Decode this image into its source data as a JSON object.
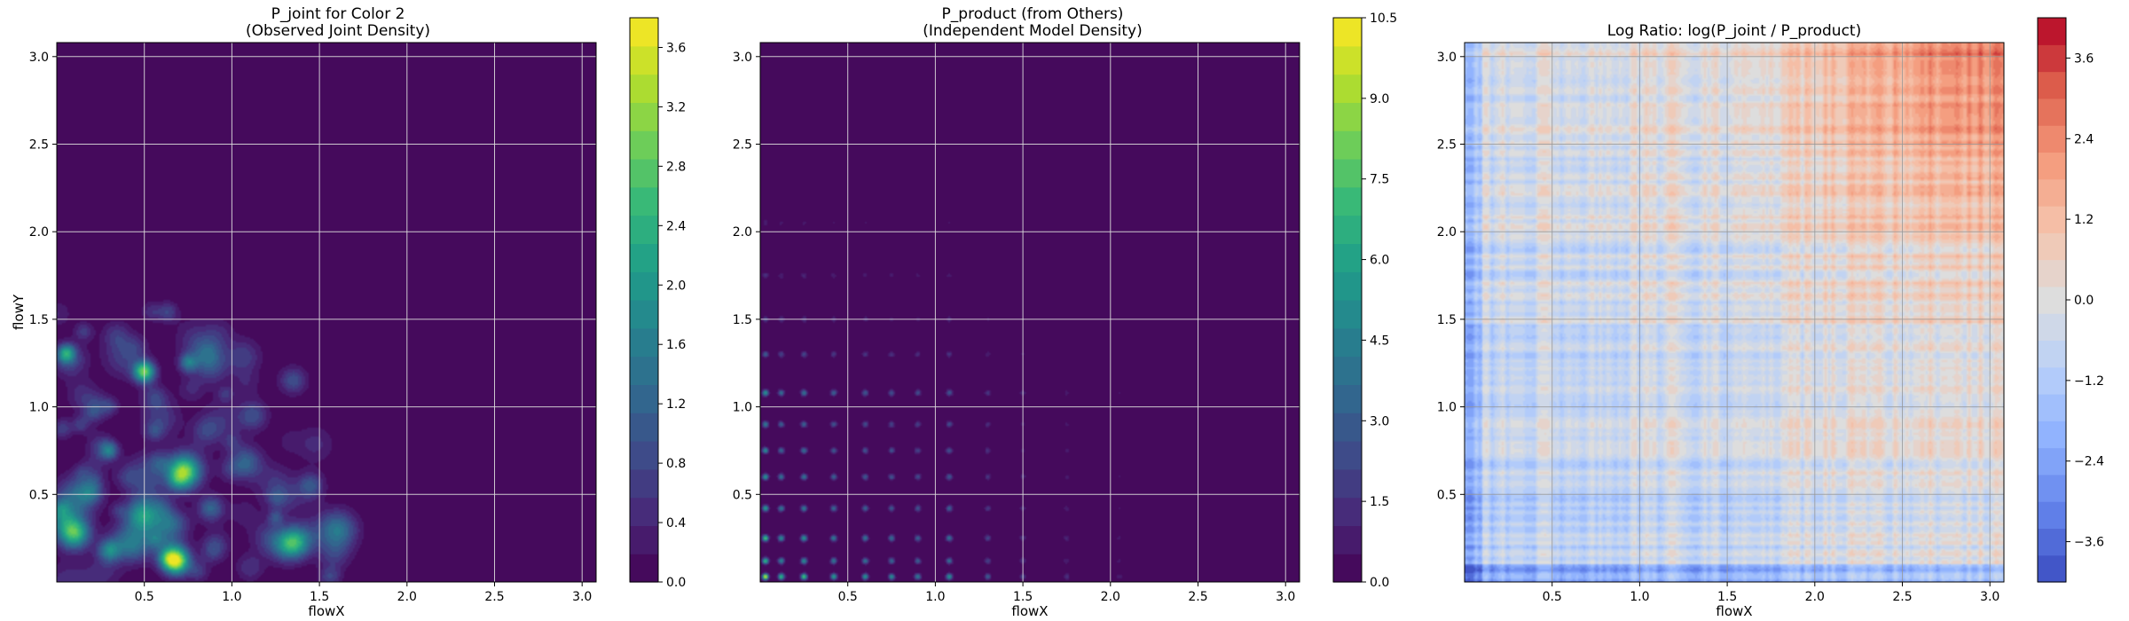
{
  "chart_data": [
    {
      "type": "heatmap",
      "title": "P_joint for Color 2\n(Observed Joint Density)",
      "xlabel": "flowX",
      "ylabel": "flowY",
      "xlim": [
        0.0,
        3.08
      ],
      "ylim": [
        0.0,
        3.08
      ],
      "xticks": [
        0.5,
        1.0,
        1.5,
        2.0,
        2.5,
        3.0
      ],
      "xtick_labels": [
        "0.5",
        "1.0",
        "1.5",
        "2.0",
        "2.5",
        "3.0"
      ],
      "yticks": [
        0.5,
        1.0,
        1.5,
        2.0,
        2.5,
        3.0
      ],
      "ytick_labels": [
        "0.5",
        "1.0",
        "1.5",
        "2.0",
        "2.5",
        "3.0"
      ],
      "grid": true,
      "colormap": "viridis",
      "colorbar": {
        "range": [
          0.0,
          3.8
        ],
        "levels": 20,
        "ticks": [
          0.0,
          0.4,
          0.8,
          1.2,
          1.6,
          2.0,
          2.4,
          2.8,
          3.2,
          3.6
        ],
        "tick_labels": [
          "0.0",
          "0.4",
          "0.8",
          "1.2",
          "1.6",
          "2.0",
          "2.4",
          "2.8",
          "3.2",
          "3.6"
        ]
      },
      "hotspots": [
        {
          "x": 0.5,
          "y": 1.2,
          "value": 2.9
        },
        {
          "x": 0.1,
          "y": 0.28,
          "value": 2.6
        },
        {
          "x": 0.68,
          "y": 0.12,
          "value": 3.6
        },
        {
          "x": 0.72,
          "y": 0.62,
          "value": 2.8
        },
        {
          "x": 0.05,
          "y": 1.3,
          "value": 1.5
        },
        {
          "x": 1.35,
          "y": 0.22,
          "value": 1.9
        },
        {
          "x": 0.3,
          "y": 0.18,
          "value": 1.6
        },
        {
          "x": 0.3,
          "y": 0.75,
          "value": 1.5
        },
        {
          "x": 0.75,
          "y": 1.25,
          "value": 1.4
        },
        {
          "x": 1.08,
          "y": 0.68,
          "value": 1.2
        },
        {
          "x": 0.48,
          "y": 0.38,
          "value": 1.4
        },
        {
          "x": 0.88,
          "y": 0.42,
          "value": 1.2
        },
        {
          "x": 0.2,
          "y": 0.52,
          "value": 1.1
        },
        {
          "x": 1.45,
          "y": 0.55,
          "value": 1.0
        },
        {
          "x": 1.35,
          "y": 1.15,
          "value": 0.9
        },
        {
          "x": 1.12,
          "y": 0.95,
          "value": 0.9
        }
      ]
    },
    {
      "type": "heatmap",
      "title": "P_product (from Others)\n(Independent Model Density)",
      "xlabel": "flowX",
      "ylabel": "",
      "xlim": [
        0.0,
        3.08
      ],
      "ylim": [
        0.0,
        3.08
      ],
      "xticks": [
        0.5,
        1.0,
        1.5,
        2.0,
        2.5,
        3.0
      ],
      "xtick_labels": [
        "0.5",
        "1.0",
        "1.5",
        "2.0",
        "2.5",
        "3.0"
      ],
      "yticks": [
        0.5,
        1.0,
        1.5,
        2.0,
        2.5,
        3.0
      ],
      "ytick_labels": [
        "0.5",
        "1.0",
        "1.5",
        "2.0",
        "2.5",
        "3.0"
      ],
      "grid": true,
      "colormap": "viridis",
      "colorbar": {
        "range": [
          0.0,
          10.5
        ],
        "levels": 20,
        "ticks": [
          0.0,
          1.5,
          3.0,
          4.5,
          6.0,
          7.5,
          9.0,
          10.5
        ],
        "tick_labels": [
          "0.0",
          "1.5",
          "3.0",
          "4.5",
          "6.0",
          "7.5",
          "9.0",
          "10.5"
        ]
      },
      "marginal_peaks": [
        {
          "pos": 0.03,
          "weight": 1.0
        },
        {
          "pos": 0.12,
          "weight": 0.7
        },
        {
          "pos": 0.25,
          "weight": 0.75
        },
        {
          "pos": 0.42,
          "weight": 0.6
        },
        {
          "pos": 0.6,
          "weight": 0.55
        },
        {
          "pos": 0.75,
          "weight": 0.5
        },
        {
          "pos": 0.9,
          "weight": 0.45
        },
        {
          "pos": 1.08,
          "weight": 0.55
        },
        {
          "pos": 1.3,
          "weight": 0.3
        },
        {
          "pos": 1.5,
          "weight": 0.22
        },
        {
          "pos": 1.75,
          "weight": 0.15
        },
        {
          "pos": 2.05,
          "weight": 0.1
        }
      ]
    },
    {
      "type": "heatmap",
      "title": "Log Ratio: log(P_joint / P_product)",
      "xlabel": "flowX",
      "ylabel": "",
      "xlim": [
        0.0,
        3.08
      ],
      "ylim": [
        0.0,
        3.08
      ],
      "xticks": [
        0.5,
        1.0,
        1.5,
        2.0,
        2.5,
        3.0
      ],
      "xtick_labels": [
        "0.5",
        "1.0",
        "1.5",
        "2.0",
        "2.5",
        "3.0"
      ],
      "yticks": [
        0.5,
        1.0,
        1.5,
        2.0,
        2.5,
        3.0
      ],
      "ytick_labels": [
        "0.5",
        "1.0",
        "1.5",
        "2.0",
        "2.5",
        "3.0"
      ],
      "grid": true,
      "colormap": "coolwarm",
      "colorbar": {
        "range": [
          -4.2,
          4.2
        ],
        "levels": 21,
        "ticks": [
          -3.6,
          -2.4,
          -1.2,
          0.0,
          1.2,
          2.4,
          3.6
        ],
        "tick_labels": [
          "−3.6",
          "−2.4",
          "−1.2",
          "0.0",
          "1.2",
          "2.4",
          "3.6"
        ]
      },
      "trend": "negative (blue) near the left and bottom edges, near zero in the middle, positive (red) toward the upper right corner"
    }
  ]
}
